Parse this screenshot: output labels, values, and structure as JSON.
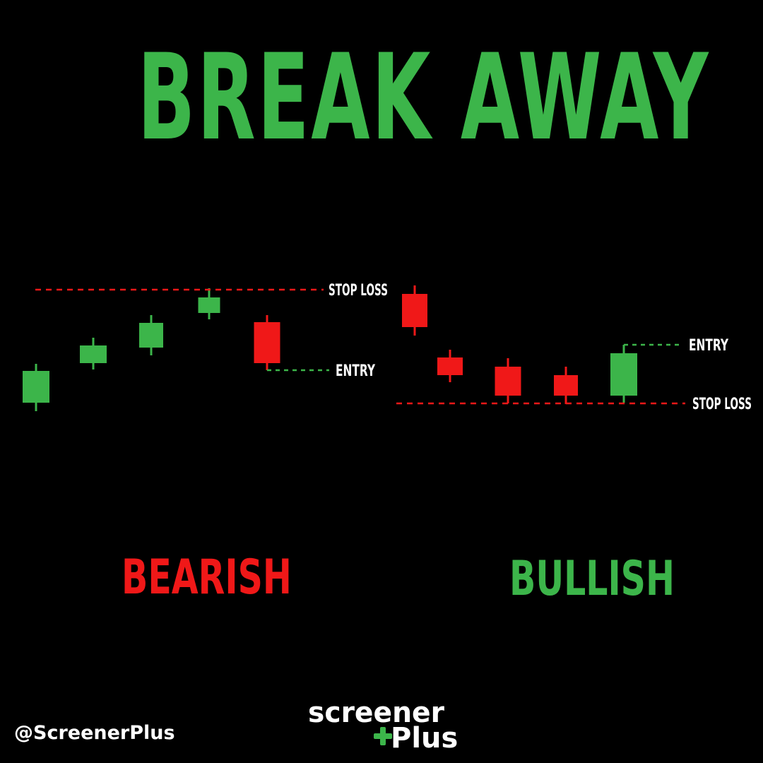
{
  "title": "BREAK AWAY",
  "colors": {
    "background": "#000000",
    "bullish": "#3cb54a",
    "bearish": "#f01818",
    "stop_loss_line": "#f01818",
    "entry_line": "#3cb54a",
    "text": "#ffffff"
  },
  "labels": {
    "stop_loss": "STOP LOSS",
    "entry": "ENTRY"
  },
  "patterns": [
    {
      "name": "BEARISH",
      "color": "#f01818",
      "candles": [
        {
          "direction": "bullish",
          "open": 430,
          "close": 475,
          "high": 485,
          "low": 418
        },
        {
          "direction": "bullish",
          "open": 486,
          "close": 511,
          "high": 522,
          "low": 477
        },
        {
          "direction": "bullish",
          "open": 508,
          "close": 543,
          "high": 554,
          "low": 497
        },
        {
          "direction": "bullish",
          "open": 557,
          "close": 579,
          "high": 592,
          "low": 548
        },
        {
          "direction": "bearish",
          "open": 544,
          "close": 486,
          "high": 554,
          "low": 476
        }
      ],
      "stop_loss": 590,
      "entry": 476
    },
    {
      "name": "BULLISH",
      "color": "#3cb54a",
      "candles": [
        {
          "direction": "bearish",
          "open": 584,
          "close": 537,
          "high": 596,
          "low": 525
        },
        {
          "direction": "bearish",
          "open": 494,
          "close": 469,
          "high": 505,
          "low": 459
        },
        {
          "direction": "bearish",
          "open": 481,
          "close": 440,
          "high": 493,
          "low": 429
        },
        {
          "direction": "bearish",
          "open": 469,
          "close": 440,
          "high": 481,
          "low": 428
        },
        {
          "direction": "bullish",
          "open": 440,
          "close": 500,
          "high": 512,
          "low": 430
        }
      ],
      "stop_loss": 429,
      "entry": 512
    }
  ],
  "footer": {
    "handle": "@ScreenerPlus",
    "logo_top": "screener",
    "logo_bottom": "Plus"
  }
}
